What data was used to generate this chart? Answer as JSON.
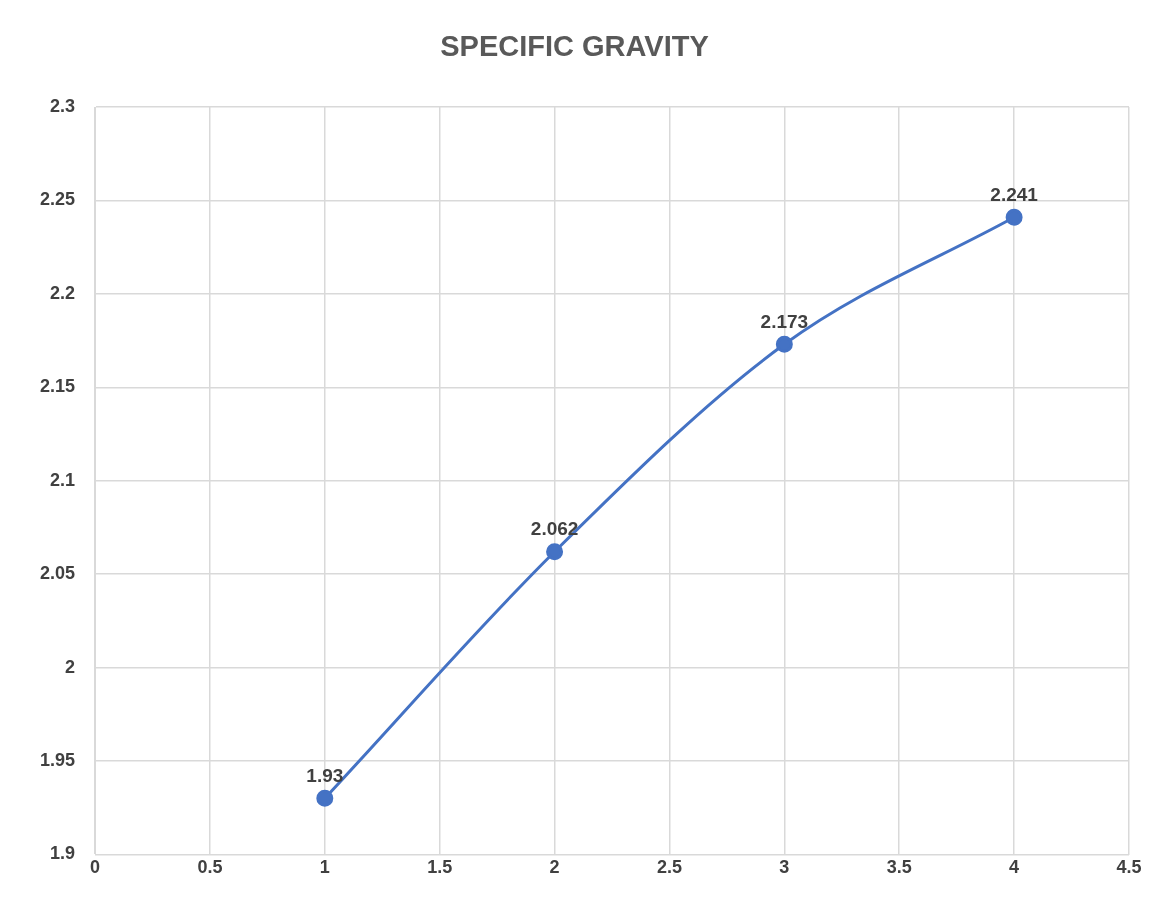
{
  "chart_data": {
    "type": "line",
    "title": "SPECIFIC GRAVITY",
    "x": [
      1,
      2,
      3,
      4
    ],
    "series": [
      {
        "color": "#4472c4",
        "values": [
          1.93,
          2.062,
          2.173,
          2.241
        ]
      }
    ],
    "xlim": [
      0,
      4.5
    ],
    "xticks": [
      0,
      0.5,
      1,
      1.5,
      2,
      2.5,
      3,
      3.5,
      4,
      4.5
    ],
    "ylim": [
      1.9,
      2.3
    ],
    "yticks": [
      1.9,
      1.95,
      2,
      2.05,
      2.1,
      2.15,
      2.2,
      2.25,
      2.3
    ],
    "grid": true,
    "legend": false,
    "marker": "circle",
    "line_style": "solid",
    "data_labels": true
  }
}
